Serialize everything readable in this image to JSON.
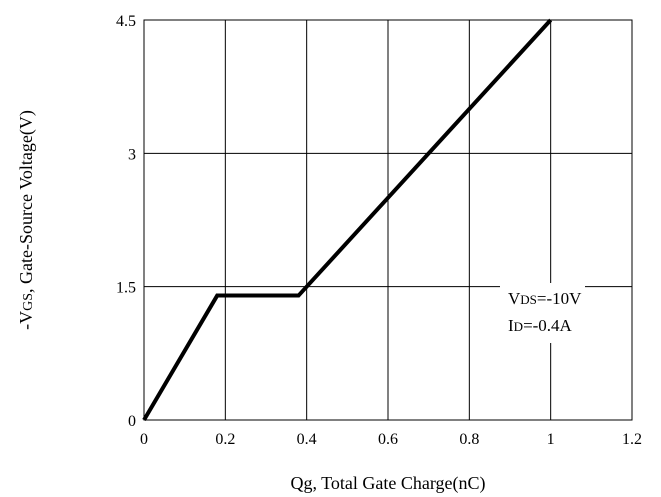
{
  "chart_data": {
    "type": "line",
    "title": "",
    "xlabel": "Qg, Total Gate Charge(nC)",
    "ylabel": "-VGS, Gate-Source Voltage(V)",
    "ylabel_parts": {
      "prefix": "-V",
      "sub": "GS",
      "suffix": ", Gate-Source Voltage(V)"
    },
    "xlim": [
      0,
      1.2
    ],
    "ylim": [
      0,
      4.5
    ],
    "xticks": [
      "0",
      "0.2",
      "0.4",
      "0.6",
      "0.8",
      "1",
      "1.2"
    ],
    "yticks": [
      "0",
      "1.5",
      "3",
      "4.5"
    ],
    "grid": true,
    "series": [
      {
        "x": [
          0,
          0.18,
          0.38,
          1.0
        ],
        "y": [
          0,
          1.4,
          1.4,
          4.5
        ],
        "color": "#000000"
      }
    ],
    "annotations": [
      {
        "prefix": "V",
        "sub": "DS",
        "suffix": "=-10V"
      },
      {
        "prefix": "I",
        "sub": "D",
        "suffix": "=-0.4A"
      }
    ]
  }
}
